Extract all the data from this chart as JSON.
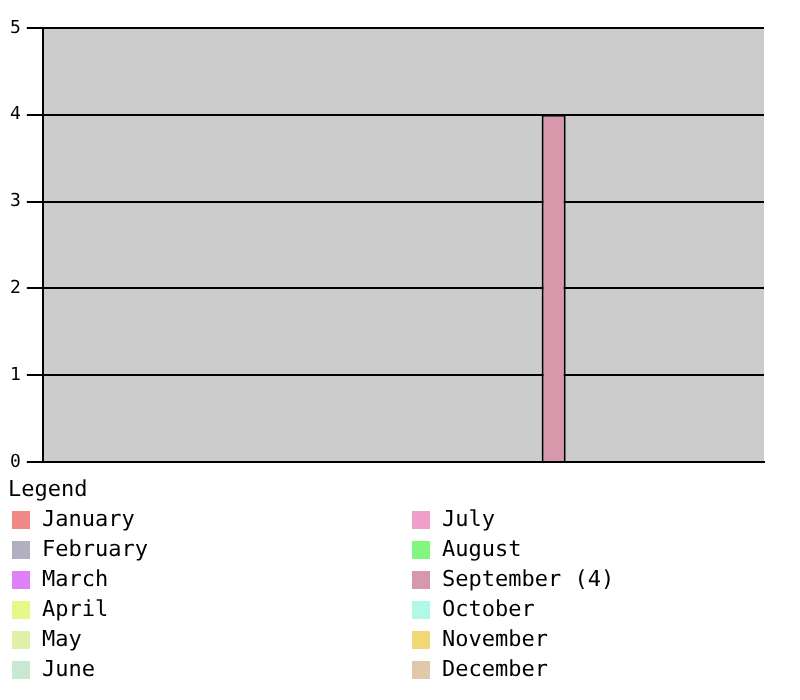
{
  "chart_data": {
    "type": "bar",
    "legend_title": "Legend",
    "categories": [
      null,
      null,
      null,
      null,
      null,
      null,
      null,
      null,
      null,
      null,
      null,
      null
    ],
    "series": [
      {
        "name": "January",
        "color": "#f08888",
        "values": [
          0,
          null,
          null,
          null,
          null,
          null,
          null,
          null,
          null,
          null,
          null,
          null
        ]
      },
      {
        "name": "February",
        "color": "#b0b0c0",
        "values": [
          null,
          0,
          null,
          null,
          null,
          null,
          null,
          null,
          null,
          null,
          null,
          null
        ]
      },
      {
        "name": "March",
        "color": "#e080f8",
        "values": [
          null,
          null,
          0,
          null,
          null,
          null,
          null,
          null,
          null,
          null,
          null,
          null
        ]
      },
      {
        "name": "April",
        "color": "#e8f888",
        "values": [
          null,
          null,
          null,
          0,
          null,
          null,
          null,
          null,
          null,
          null,
          null,
          null
        ]
      },
      {
        "name": "May",
        "color": "#e0f0a8",
        "values": [
          null,
          null,
          null,
          null,
          0,
          null,
          null,
          null,
          null,
          null,
          null,
          null
        ]
      },
      {
        "name": "June",
        "color": "#c8e8d0",
        "values": [
          null,
          null,
          null,
          null,
          null,
          0,
          null,
          null,
          null,
          null,
          null,
          null
        ]
      },
      {
        "name": "July",
        "color": "#f0a0c8",
        "values": [
          null,
          null,
          null,
          null,
          null,
          null,
          0,
          null,
          null,
          null,
          null,
          null
        ]
      },
      {
        "name": "August",
        "color": "#80f880",
        "values": [
          null,
          null,
          null,
          null,
          null,
          null,
          null,
          0,
          null,
          null,
          null,
          null
        ]
      },
      {
        "name": "September (4)",
        "color": "#d898ac",
        "values": [
          null,
          null,
          null,
          null,
          null,
          null,
          null,
          null,
          4,
          null,
          null,
          null
        ]
      },
      {
        "name": "October",
        "color": "#b0f8e8",
        "values": [
          null,
          null,
          null,
          null,
          null,
          null,
          null,
          null,
          null,
          0,
          null,
          null
        ]
      },
      {
        "name": "November",
        "color": "#f0d878",
        "values": [
          null,
          null,
          null,
          null,
          null,
          null,
          null,
          null,
          null,
          null,
          0,
          null
        ]
      },
      {
        "name": "December",
        "color": "#e0c8a8",
        "values": [
          null,
          null,
          null,
          null,
          null,
          null,
          null,
          null,
          null,
          null,
          null,
          0
        ]
      }
    ],
    "ylim": [
      0,
      5
    ],
    "yticks": [
      0,
      1,
      2,
      3,
      4,
      5
    ],
    "grid": "y",
    "legend": "bottom",
    "tick_labels": "y"
  }
}
